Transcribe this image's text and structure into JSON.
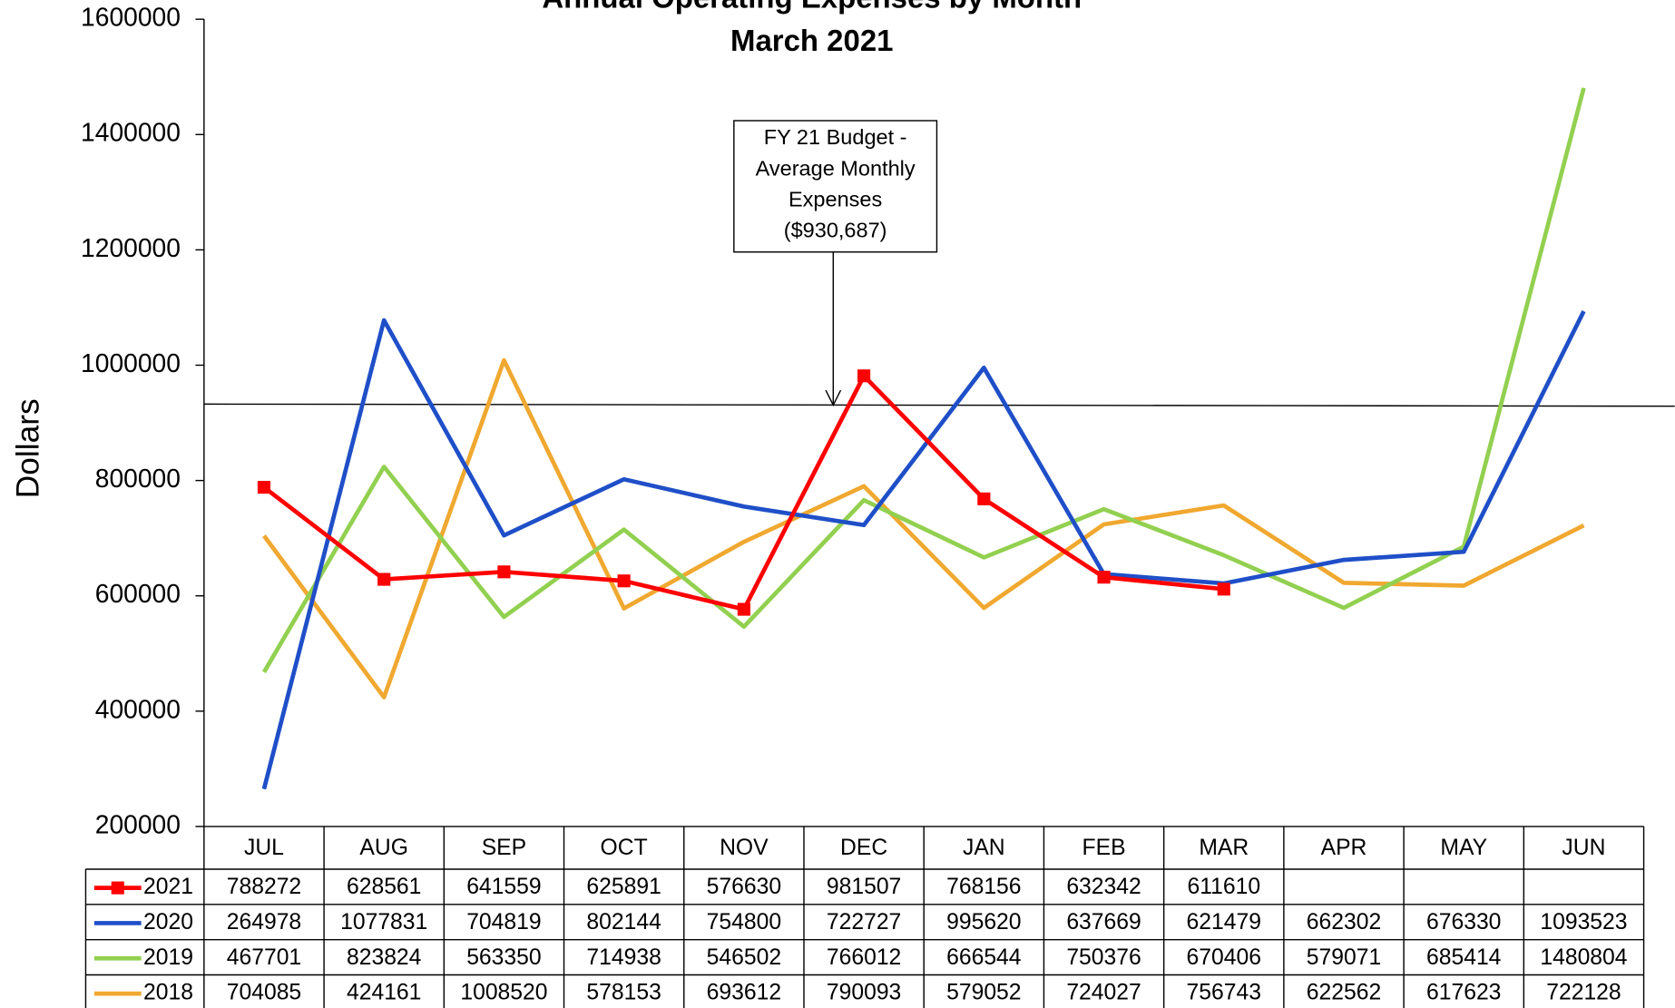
{
  "chart_data": {
    "type": "line",
    "title": "Annual Operating Expenses by Month",
    "subtitle": "March 2021",
    "y_label": "Dollars",
    "categories": [
      "JUL",
      "AUG",
      "SEP",
      "OCT",
      "NOV",
      "DEC",
      "JAN",
      "FEB",
      "MAR",
      "APR",
      "MAY",
      "JUN"
    ],
    "series": [
      {
        "name": "2021",
        "color": "#ff0000",
        "marker": "square",
        "values": [
          788272,
          628561,
          641559,
          625891,
          576630,
          981507,
          768156,
          632342,
          611610,
          null,
          null,
          null
        ]
      },
      {
        "name": "2020",
        "color": "#1f4fc8",
        "values": [
          264978,
          1077831,
          704819,
          802144,
          754800,
          722727,
          995620,
          637669,
          621479,
          662302,
          676330,
          1093523
        ]
      },
      {
        "name": "2019",
        "color": "#92d050",
        "values": [
          467701,
          823824,
          563350,
          714938,
          546502,
          766012,
          666544,
          750376,
          670406,
          579071,
          685414,
          1480804
        ]
      },
      {
        "name": "2018",
        "color": "#f0a830",
        "values": [
          704085,
          424161,
          1008520,
          578153,
          693612,
          790093,
          579052,
          724027,
          756743,
          622562,
          617623,
          722128
        ]
      }
    ],
    "ylim": [
      200000,
      1600000
    ],
    "yticks": [
      200000,
      400000,
      600000,
      800000,
      1000000,
      1200000,
      1400000,
      1600000
    ],
    "reference_line": {
      "value": 930687,
      "label_lines": [
        "FY 21 Budget -",
        "Average Monthly",
        "Expenses",
        "($930,687)"
      ]
    }
  }
}
